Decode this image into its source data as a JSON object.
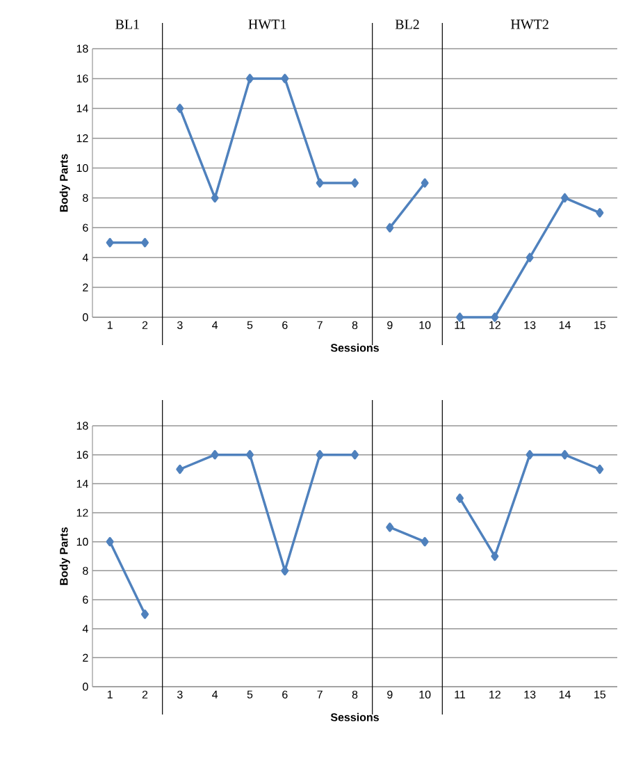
{
  "chart_data": [
    {
      "type": "line",
      "xlabel": "Sessions",
      "ylabel": "Body Parts",
      "annotations": [
        "BL1",
        "HWT1",
        "BL2",
        "HWT2"
      ],
      "x": [
        1,
        2,
        3,
        4,
        5,
        6,
        7,
        8,
        9,
        10,
        11,
        12,
        13,
        14,
        15
      ],
      "xlim": [
        0.5,
        15.5
      ],
      "xticks": [
        1,
        2,
        3,
        4,
        5,
        6,
        7,
        8,
        9,
        10,
        11,
        12,
        13,
        14,
        15
      ],
      "ylim": [
        0,
        18
      ],
      "yticks": [
        0,
        2,
        4,
        6,
        8,
        10,
        12,
        14,
        16,
        18
      ],
      "grid": "y",
      "marker": "diamond",
      "line_style": "solid",
      "ref_lines": [
        {
          "axis": "x",
          "value": 2.5,
          "color": "#000000"
        },
        {
          "axis": "x",
          "value": 8.5,
          "color": "#000000"
        },
        {
          "axis": "x",
          "value": 10.5,
          "color": "#000000"
        }
      ],
      "series": [
        {
          "color": "#4f81bd",
          "values": [
            5,
            5,
            null,
            null,
            null,
            null,
            null,
            null,
            null,
            null,
            null,
            null,
            null,
            null,
            null
          ]
        },
        {
          "color": "#4f81bd",
          "values": [
            null,
            null,
            14,
            8,
            16,
            16,
            9,
            9,
            null,
            null,
            null,
            null,
            null,
            null,
            null
          ]
        },
        {
          "color": "#4f81bd",
          "values": [
            null,
            null,
            null,
            null,
            null,
            null,
            null,
            null,
            6,
            9,
            null,
            null,
            null,
            null,
            null
          ]
        },
        {
          "color": "#4f81bd",
          "values": [
            null,
            null,
            null,
            null,
            null,
            null,
            null,
            null,
            null,
            null,
            0,
            0,
            4,
            8,
            7
          ]
        }
      ]
    },
    {
      "type": "line",
      "xlabel": "Sessions",
      "ylabel": "Body Parts",
      "x": [
        1,
        2,
        3,
        4,
        5,
        6,
        7,
        8,
        9,
        10,
        11,
        12,
        13,
        14,
        15
      ],
      "xlim": [
        0.5,
        15.5
      ],
      "xticks": [
        1,
        2,
        3,
        4,
        5,
        6,
        7,
        8,
        9,
        10,
        11,
        12,
        13,
        14,
        15
      ],
      "ylim": [
        0,
        18
      ],
      "yticks": [
        0,
        2,
        4,
        6,
        8,
        10,
        12,
        14,
        16,
        18
      ],
      "grid": "y",
      "marker": "diamond",
      "line_style": "solid",
      "ref_lines": [
        {
          "axis": "x",
          "value": 2.5,
          "color": "#000000"
        },
        {
          "axis": "x",
          "value": 8.5,
          "color": "#000000"
        },
        {
          "axis": "x",
          "value": 10.5,
          "color": "#000000"
        }
      ],
      "series": [
        {
          "color": "#4f81bd",
          "values": [
            10,
            5,
            null,
            null,
            null,
            null,
            null,
            null,
            null,
            null,
            null,
            null,
            null,
            null,
            null
          ]
        },
        {
          "color": "#4f81bd",
          "values": [
            null,
            null,
            15,
            16,
            16,
            8,
            16,
            16,
            null,
            null,
            null,
            null,
            null,
            null,
            null
          ]
        },
        {
          "color": "#4f81bd",
          "values": [
            null,
            null,
            null,
            null,
            null,
            null,
            null,
            null,
            11,
            10,
            null,
            null,
            null,
            null,
            null
          ]
        },
        {
          "color": "#4f81bd",
          "values": [
            null,
            null,
            null,
            null,
            null,
            null,
            null,
            null,
            null,
            null,
            13,
            9,
            16,
            16,
            15
          ]
        }
      ]
    }
  ]
}
